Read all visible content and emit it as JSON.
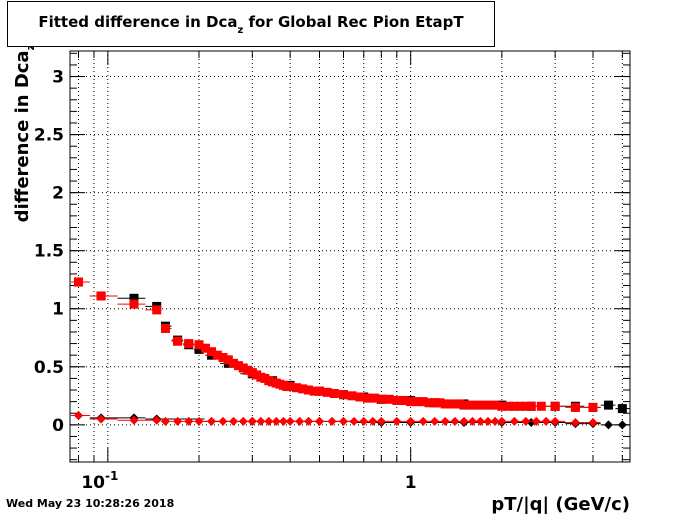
{
  "title": {
    "main": "Fitted difference in Dca",
    "sub": "z",
    "rest": " for Global Rec Pion EtapT"
  },
  "timestamp": "Wed May 23 10:28:26 2018",
  "chart_data": {
    "type": "scatter",
    "xlabel": "pT/|q| (GeV/c)",
    "ylabel": "difference in Dca",
    "ylabel_sub": "z",
    "xscale": "log",
    "xlim": [
      0.075,
      5.3
    ],
    "ylim": [
      -0.32,
      3.22
    ],
    "grid": true,
    "y_ticks": [
      0,
      0.5,
      1,
      1.5,
      2,
      2.5,
      3
    ],
    "y_tick_labels": [
      "0",
      "0.5",
      "1",
      "1.5",
      "2",
      "2.5",
      "3"
    ],
    "x_tick_labels": [
      {
        "value": 0.1,
        "base": "10",
        "exp": "-1"
      },
      {
        "value": 1,
        "base": "1",
        "exp": ""
      }
    ],
    "colors": {
      "black": "#000000",
      "red": "#ff0000"
    },
    "series": [
      {
        "color": "black",
        "marker": "square",
        "x": [
          0.08,
          0.095,
          0.122,
          0.145,
          0.155,
          0.17,
          0.185,
          0.2,
          0.22,
          0.25,
          0.3,
          0.35,
          0.4,
          0.5,
          0.6,
          0.7,
          0.8,
          1.0,
          1.2,
          1.5,
          2.0,
          2.5,
          3.0,
          3.5,
          4.0,
          4.5,
          5.0
        ],
        "y": [
          1.23,
          1.11,
          1.09,
          1.02,
          0.85,
          0.73,
          0.69,
          0.65,
          0.6,
          0.53,
          0.44,
          0.38,
          0.34,
          0.29,
          0.26,
          0.24,
          0.22,
          0.21,
          0.19,
          0.18,
          0.17,
          0.16,
          0.16,
          0.16,
          0.15,
          0.17,
          0.14
        ]
      },
      {
        "color": "red",
        "marker": "square",
        "x": [
          0.08,
          0.095,
          0.122,
          0.145,
          0.155,
          0.17,
          0.185,
          0.2,
          0.21,
          0.22,
          0.23,
          0.24,
          0.25,
          0.26,
          0.27,
          0.28,
          0.29,
          0.3,
          0.31,
          0.32,
          0.33,
          0.34,
          0.35,
          0.36,
          0.37,
          0.38,
          0.39,
          0.4,
          0.42,
          0.44,
          0.46,
          0.48,
          0.5,
          0.53,
          0.56,
          0.6,
          0.64,
          0.68,
          0.72,
          0.76,
          0.8,
          0.85,
          0.9,
          0.95,
          1.0,
          1.05,
          1.1,
          1.15,
          1.2,
          1.25,
          1.3,
          1.35,
          1.4,
          1.45,
          1.5,
          1.6,
          1.7,
          1.8,
          1.9,
          2.0,
          2.1,
          2.2,
          2.3,
          2.4,
          2.5,
          2.7,
          3.0,
          3.5,
          4.0
        ],
        "y": [
          1.23,
          1.11,
          1.04,
          0.99,
          0.83,
          0.72,
          0.7,
          0.69,
          0.66,
          0.63,
          0.6,
          0.58,
          0.56,
          0.53,
          0.51,
          0.49,
          0.47,
          0.45,
          0.43,
          0.41,
          0.4,
          0.38,
          0.37,
          0.36,
          0.35,
          0.34,
          0.33,
          0.33,
          0.32,
          0.31,
          0.3,
          0.29,
          0.29,
          0.28,
          0.27,
          0.26,
          0.25,
          0.24,
          0.23,
          0.23,
          0.22,
          0.22,
          0.21,
          0.21,
          0.2,
          0.2,
          0.2,
          0.19,
          0.19,
          0.19,
          0.18,
          0.18,
          0.18,
          0.18,
          0.17,
          0.17,
          0.17,
          0.17,
          0.17,
          0.16,
          0.16,
          0.16,
          0.16,
          0.16,
          0.16,
          0.16,
          0.16,
          0.15,
          0.15
        ]
      },
      {
        "color": "black",
        "marker": "diamond",
        "x": [
          0.08,
          0.095,
          0.122,
          0.145,
          0.3,
          0.5,
          0.8,
          1.0,
          1.5,
          2.0,
          2.5,
          3.0,
          3.5,
          4.0,
          4.5,
          5.0
        ],
        "y": [
          0.08,
          0.06,
          0.06,
          0.05,
          0.03,
          0.03,
          0.02,
          0.02,
          0.02,
          0.02,
          0.02,
          0.02,
          0.01,
          0.01,
          0.0,
          0.0
        ]
      },
      {
        "color": "red",
        "marker": "diamond",
        "x": [
          0.08,
          0.095,
          0.122,
          0.145,
          0.155,
          0.17,
          0.185,
          0.2,
          0.22,
          0.24,
          0.26,
          0.28,
          0.3,
          0.32,
          0.34,
          0.36,
          0.38,
          0.4,
          0.43,
          0.46,
          0.5,
          0.55,
          0.6,
          0.65,
          0.7,
          0.75,
          0.8,
          0.9,
          1.0,
          1.1,
          1.2,
          1.3,
          1.4,
          1.5,
          1.6,
          1.7,
          1.8,
          1.9,
          2.0,
          2.2,
          2.4,
          2.6,
          2.8,
          3.0,
          3.5,
          4.0
        ],
        "y": [
          0.08,
          0.05,
          0.04,
          0.04,
          0.03,
          0.03,
          0.03,
          0.03,
          0.03,
          0.03,
          0.03,
          0.03,
          0.03,
          0.03,
          0.03,
          0.03,
          0.03,
          0.03,
          0.03,
          0.03,
          0.03,
          0.03,
          0.03,
          0.03,
          0.03,
          0.03,
          0.03,
          0.03,
          0.03,
          0.03,
          0.03,
          0.03,
          0.03,
          0.03,
          0.03,
          0.03,
          0.03,
          0.03,
          0.03,
          0.03,
          0.03,
          0.03,
          0.03,
          0.03,
          0.02,
          0.02
        ]
      }
    ]
  }
}
